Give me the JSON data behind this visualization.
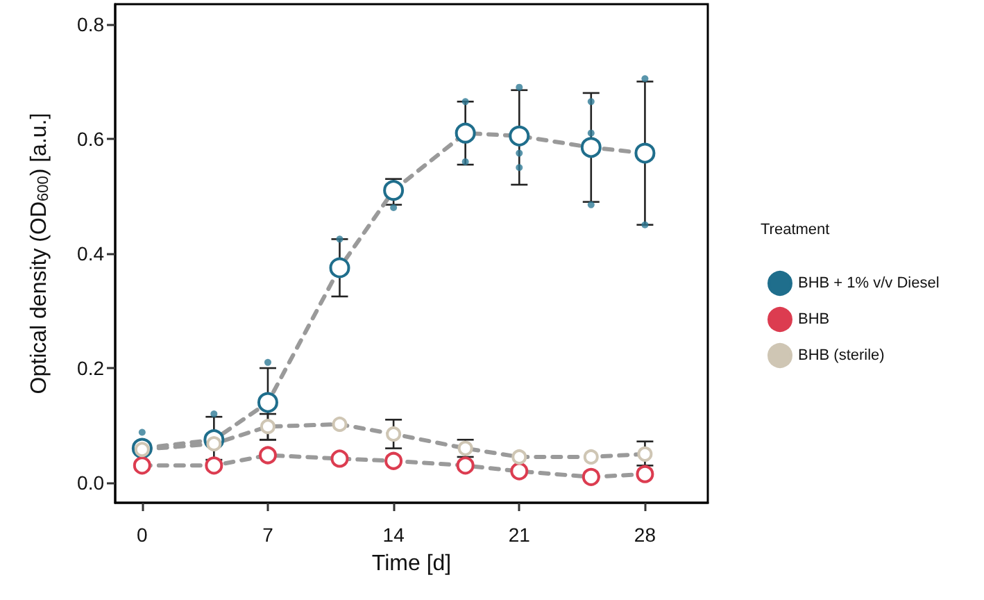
{
  "chart_data": {
    "type": "line",
    "xlabel": "Time [d]",
    "ylabel": "Optical density (OD$_{600}$) [a.u.]",
    "legend_title": "Treatment",
    "x": [
      0,
      4,
      7,
      11,
      14,
      18,
      21,
      25,
      28
    ],
    "xlim": [
      -1.5,
      31.5
    ],
    "xticks": [
      0,
      7,
      14,
      21,
      28
    ],
    "ylim": [
      -0.035,
      0.835
    ],
    "yticks": [
      {
        "value": 0,
        "label": "0.0"
      },
      {
        "value": 0.2,
        "label": "0.2"
      },
      {
        "value": 0.4,
        "label": "0.4"
      },
      {
        "value": 0.6,
        "label": "0.6"
      },
      {
        "value": 0.8,
        "label": "0.8"
      }
    ],
    "series": [
      {
        "name": "BHB + 1% v/v Diesel",
        "color": "#1f6e8c",
        "values": [
          0.06,
          0.075,
          0.14,
          0.375,
          0.51,
          0.61,
          0.605,
          0.585,
          0.575
        ],
        "errors": [
          null,
          [
            0.04,
            0.115
          ],
          [
            0.075,
            0.2
          ],
          [
            0.325,
            0.425
          ],
          [
            0.485,
            0.53
          ],
          [
            0.555,
            0.665
          ],
          [
            0.52,
            0.685
          ],
          [
            0.49,
            0.68
          ],
          [
            0.45,
            0.7
          ]
        ]
      },
      {
        "name": "BHB",
        "color": "#dc3c50",
        "values": [
          0.03,
          0.03,
          0.048,
          0.042,
          0.038,
          0.03,
          0.02,
          0.01,
          0.015
        ]
      },
      {
        "name": "BHB (sterile)",
        "color": "#cfc6b4",
        "values": [
          0.058,
          0.068,
          0.098,
          0.102,
          0.085,
          0.06,
          0.045,
          0.045,
          0.05
        ],
        "errors": [
          null,
          null,
          [
            0.075,
            0.12
          ],
          null,
          [
            0.06,
            0.11
          ],
          [
            0.045,
            0.075
          ],
          null,
          null,
          [
            0.03,
            0.072
          ]
        ]
      },
      {
        "type": "scatter",
        "color": "#2f7a96",
        "x": [
          0,
          4,
          7,
          11,
          14,
          18,
          18,
          21,
          21,
          21,
          25,
          25,
          25,
          28,
          28
        ],
        "values": [
          0.088,
          0.12,
          0.21,
          0.425,
          0.48,
          0.665,
          0.56,
          0.69,
          0.575,
          0.55,
          0.665,
          0.61,
          0.485,
          0.705,
          0.45
        ]
      }
    ],
    "marker": "circle",
    "line_style": "dashed",
    "legend": "right",
    "grid": false
  }
}
